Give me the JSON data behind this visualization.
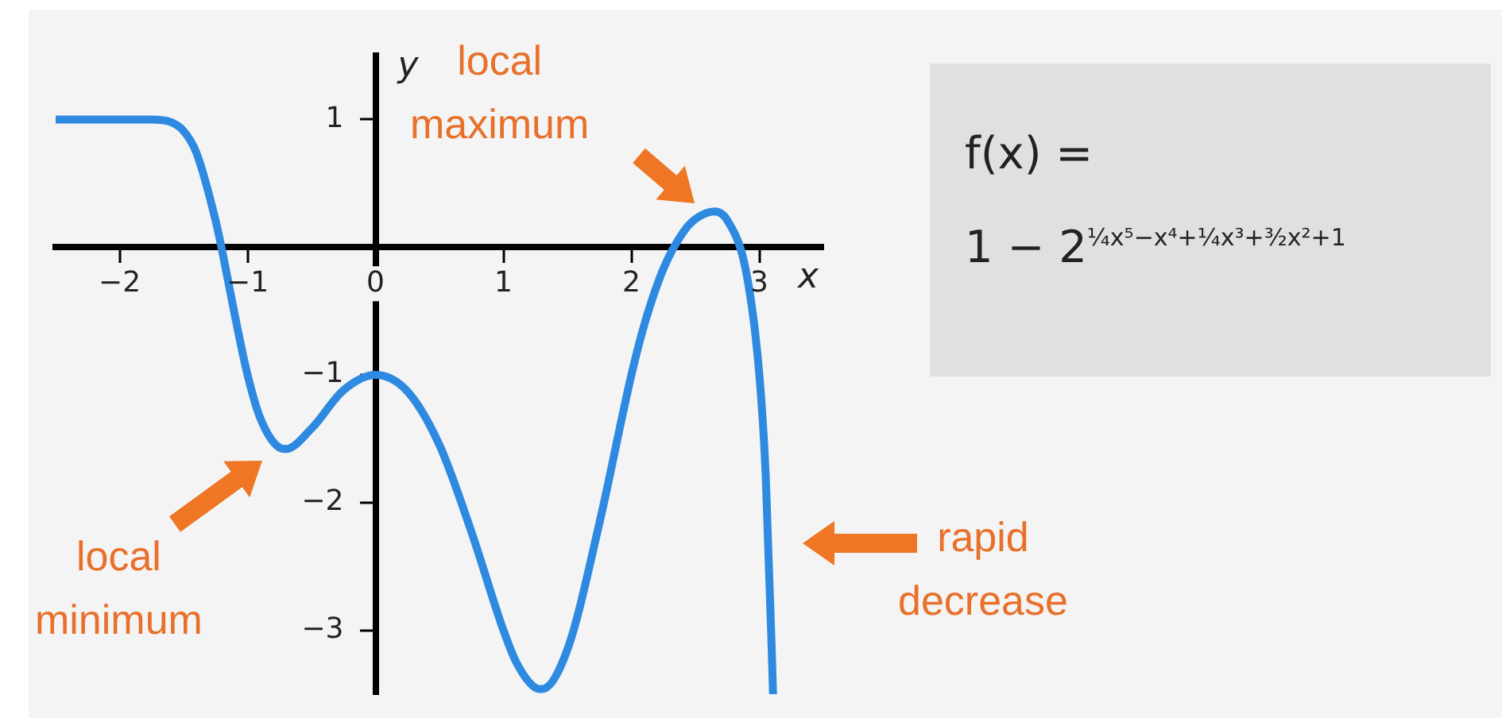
{
  "chart_data": {
    "type": "line",
    "xlabel": "x",
    "ylabel": "y",
    "x": [
      -2.5,
      -2,
      -1.75,
      -1.6,
      -1.5,
      -1.4,
      -1.25,
      -1.2,
      -1.1,
      -1,
      -0.9,
      -0.75,
      -0.7,
      -0.5,
      -0.25,
      0,
      0.25,
      0.5,
      0.75,
      1,
      1.1,
      1.25,
      1.3,
      1.5,
      1.75,
      2,
      2.1,
      2.25,
      2.4,
      2.5,
      2.65,
      2.75,
      2.9,
      3,
      3.05,
      3.1,
      3.107
    ],
    "series": [
      {
        "color": "#2e8ae0",
        "values": [
          1,
          1,
          1,
          0.98,
          0.91,
          0.74,
          0.21,
          -0.02,
          -0.53,
          -1,
          -1.34,
          -1.57,
          -1.58,
          -1.42,
          -1.12,
          -1,
          -1.13,
          -1.55,
          -2.23,
          -3,
          -3.25,
          -3.45,
          -3.46,
          -3.15,
          -2.16,
          -1,
          -0.61,
          -0.17,
          0.11,
          0.22,
          0.28,
          0.21,
          -0.21,
          -1,
          -1.79,
          -3.26,
          -3.5
        ]
      }
    ],
    "xlim": [
      -2.5,
      3.5
    ],
    "ylim": [
      -3.5,
      1.5
    ],
    "xticks": [
      -2,
      -1,
      0,
      1,
      2,
      3
    ],
    "yticks": [
      -3,
      -2,
      -1,
      1
    ],
    "grid": false,
    "legend": false,
    "marker": "none",
    "line_style": "solid",
    "annotations": [
      "local maximum",
      "local minimum",
      "rapid decrease",
      "f(x) =",
      "1 − 2$^{¼x⁵−x⁴+¼x³+³⁄₂x²+1}$"
    ]
  }
}
